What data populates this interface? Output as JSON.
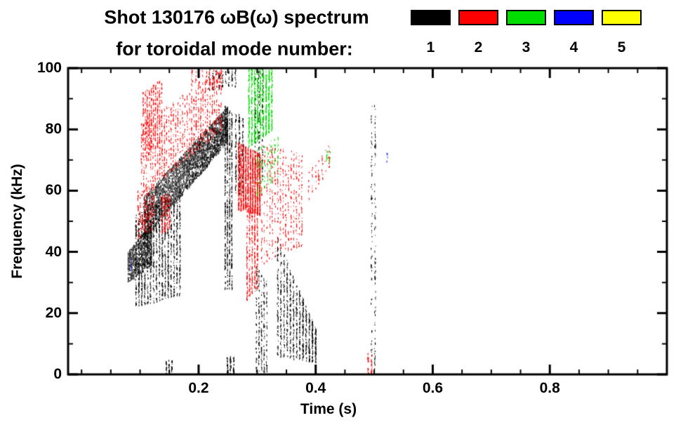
{
  "title": {
    "line1": "Shot 130176 ωB(ω) spectrum",
    "line2": "for toroidal mode number:"
  },
  "legend": {
    "modes": [
      {
        "label": "1",
        "color": "#000000"
      },
      {
        "label": "2",
        "color": "#ff0000"
      },
      {
        "label": "3",
        "color": "#00dd00"
      },
      {
        "label": "4",
        "color": "#0000ff"
      },
      {
        "label": "5",
        "color": "#ffff00"
      }
    ]
  },
  "chart_data": {
    "type": "scatter",
    "title": "Shot 130176 ωB(ω) spectrum for toroidal mode number",
    "xlabel": "Time (s)",
    "ylabel": "Frequency (kHz)",
    "xlim": [
      -0.023,
      1.0
    ],
    "ylim": [
      0,
      100
    ],
    "grid": false,
    "x_major_ticks": [
      0.2,
      0.4,
      0.6,
      0.8
    ],
    "x_tick_labels": [
      "0.2",
      "0.4",
      "0.6",
      "0.8"
    ],
    "x_minor_step": 0.05,
    "y_major_ticks": [
      0,
      20,
      40,
      60,
      80,
      100
    ],
    "y_tick_labels": [
      "0",
      "20",
      "40",
      "60",
      "80",
      "100"
    ],
    "y_minor_step": 10,
    "series": [
      {
        "name": "1",
        "color": "#000000",
        "clusters": [
          {
            "t": [
              0.105,
              0.25
            ],
            "f_low": [
              44,
              76
            ],
            "f_high": [
              58,
              88
            ],
            "n": 3000,
            "cols": 60
          },
          {
            "t": [
              0.078,
              0.12
            ],
            "f_low": [
              30,
              36
            ],
            "f_high": [
              40,
              50
            ],
            "n": 800,
            "cols": 18
          },
          {
            "t": [
              0.09,
              0.17
            ],
            "f_low": [
              22,
              26
            ],
            "f_high": [
              52,
              60
            ],
            "n": 1300,
            "cols": 16
          },
          {
            "t": [
              0.243,
              0.258
            ],
            "f_low": [
              28,
              28
            ],
            "f_high": [
              88,
              86
            ],
            "n": 600,
            "cols": 4
          },
          {
            "t": [
              0.26,
              0.278
            ],
            "f_low": [
              58,
              60
            ],
            "f_high": [
              86,
              84
            ],
            "n": 220,
            "cols": 3
          },
          {
            "t": [
              0.296,
              0.318
            ],
            "f_low": [
              1,
              1
            ],
            "f_high": [
              36,
              30
            ],
            "n": 260,
            "cols": 5
          },
          {
            "t": [
              0.293,
              0.312
            ],
            "f_low": [
              62,
              64
            ],
            "f_high": [
              100,
              100
            ],
            "n": 180,
            "cols": 3
          },
          {
            "t": [
              0.332,
              0.402
            ],
            "f_low": [
              6,
              4
            ],
            "f_high": [
              46,
              14
            ],
            "n": 900,
            "cols": 13
          },
          {
            "t": [
              0.492,
              0.504
            ],
            "f_low": [
              2,
              2
            ],
            "f_high": [
              88,
              88
            ],
            "n": 150,
            "cols": 2
          },
          {
            "t": [
              0.215,
              0.265
            ],
            "f_low": [
              93,
              94
            ],
            "f_high": [
              100,
              100
            ],
            "n": 110,
            "cols": 9
          },
          {
            "t": [
              0.142,
              0.156
            ],
            "f_low": [
              0,
              0
            ],
            "f_high": [
              5,
              5
            ],
            "n": 45,
            "cols": 3
          },
          {
            "t": [
              0.246,
              0.262
            ],
            "f_low": [
              0,
              0
            ],
            "f_high": [
              6,
              6
            ],
            "n": 90,
            "cols": 3
          }
        ]
      },
      {
        "name": "2",
        "color": "#ff0000",
        "clusters": [
          {
            "t": [
              0.1,
              0.24
            ],
            "f_low": [
              58,
              80
            ],
            "f_high": [
              82,
              100
            ],
            "n": 1000,
            "cols": 36
          },
          {
            "t": [
              0.103,
              0.138
            ],
            "f_low": [
              70,
              76
            ],
            "f_high": [
              92,
              97
            ],
            "n": 450,
            "cols": 10
          },
          {
            "t": [
              0.094,
              0.125
            ],
            "f_low": [
              44,
              48
            ],
            "f_high": [
              60,
              63
            ],
            "n": 220,
            "cols": 8
          },
          {
            "t": [
              0.135,
              0.152
            ],
            "f_low": [
              46,
              48
            ],
            "f_high": [
              58,
              60
            ],
            "n": 160,
            "cols": 4
          },
          {
            "t": [
              0.266,
              0.306
            ],
            "f_low": [
              54,
              52
            ],
            "f_high": [
              76,
              72
            ],
            "n": 1500,
            "cols": 10
          },
          {
            "t": [
              0.28,
              0.302
            ],
            "f_low": [
              24,
              28
            ],
            "f_high": [
              56,
              54
            ],
            "n": 400,
            "cols": 5
          },
          {
            "t": [
              0.305,
              0.378
            ],
            "f_low": [
              36,
              42
            ],
            "f_high": [
              76,
              72
            ],
            "n": 520,
            "cols": 16
          },
          {
            "t": [
              0.385,
              0.425
            ],
            "f_low": [
              56,
              68
            ],
            "f_high": [
              66,
              76
            ],
            "n": 70,
            "cols": 7
          },
          {
            "t": [
              0.185,
              0.24
            ],
            "f_low": [
              94,
              94
            ],
            "f_high": [
              100,
              100
            ],
            "n": 90,
            "cols": 9
          },
          {
            "t": [
              0.486,
              0.498
            ],
            "f_low": [
              0,
              0
            ],
            "f_high": [
              7,
              7
            ],
            "n": 40,
            "cols": 2
          }
        ]
      },
      {
        "name": "3",
        "color": "#00dd00",
        "clusters": [
          {
            "t": [
              0.283,
              0.327
            ],
            "f_low": [
              74,
              80
            ],
            "f_high": [
              100,
              100
            ],
            "n": 950,
            "cols": 9
          },
          {
            "t": [
              0.298,
              0.338
            ],
            "f_low": [
              58,
              64
            ],
            "f_high": [
              74,
              78
            ],
            "n": 130,
            "cols": 7
          },
          {
            "t": [
              0.416,
              0.426
            ],
            "f_low": [
              69,
              69
            ],
            "f_high": [
              74,
              74
            ],
            "n": 18,
            "cols": 2
          }
        ]
      },
      {
        "name": "4",
        "color": "#0000ff",
        "clusters": [
          {
            "t": [
              0.081,
              0.087
            ],
            "f_low": [
              34,
              34
            ],
            "f_high": [
              38,
              38
            ],
            "n": 7,
            "cols": 1
          },
          {
            "t": [
              0.518,
              0.525
            ],
            "f_low": [
              69,
              69
            ],
            "f_high": [
              74,
              74
            ],
            "n": 7,
            "cols": 1
          }
        ]
      },
      {
        "name": "5",
        "color": "#ffff00",
        "clusters": []
      }
    ]
  }
}
